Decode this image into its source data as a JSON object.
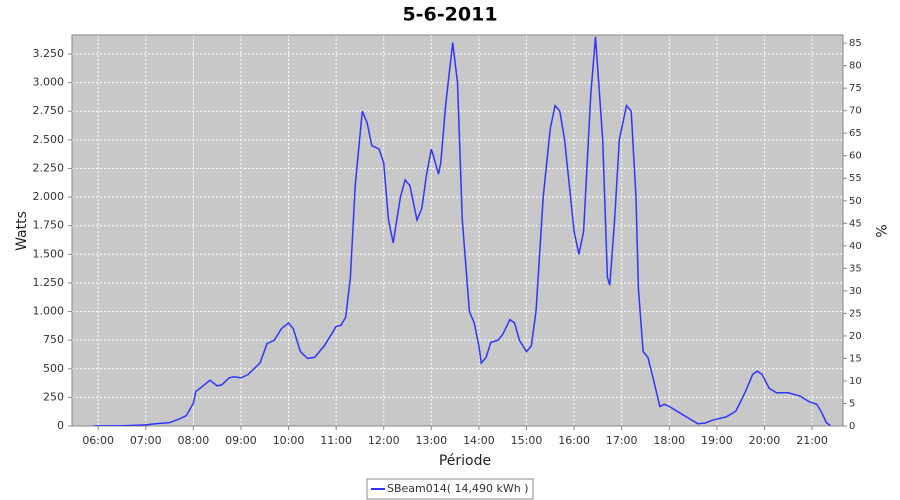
{
  "chart_data": {
    "type": "line",
    "title": "5-6-2011",
    "x_label": "Période",
    "y_label": "Watts",
    "y2_label": "%",
    "x": [
      5.9,
      6.5,
      7.0,
      7.2,
      7.5,
      7.7,
      7.85,
      8.0,
      8.05,
      8.2,
      8.35,
      8.5,
      8.6,
      8.75,
      8.85,
      9.0,
      9.15,
      9.4,
      9.55,
      9.7,
      9.85,
      10.0,
      10.1,
      10.25,
      10.4,
      10.55,
      10.75,
      10.9,
      11.0,
      11.1,
      11.2,
      11.3,
      11.4,
      11.55,
      11.65,
      11.75,
      11.9,
      12.0,
      12.1,
      12.2,
      12.35,
      12.45,
      12.55,
      12.7,
      12.8,
      12.9,
      13.0,
      13.05,
      13.15,
      13.2,
      13.3,
      13.45,
      13.55,
      13.65,
      13.8,
      13.9,
      14.0,
      14.05,
      14.15,
      14.25,
      14.4,
      14.5,
      14.65,
      14.75,
      14.85,
      15.0,
      15.1,
      15.2,
      15.35,
      15.5,
      15.6,
      15.7,
      15.8,
      16.0,
      16.1,
      16.2,
      16.35,
      16.45,
      16.6,
      16.7,
      16.75,
      16.85,
      16.95,
      17.1,
      17.2,
      17.3,
      17.35,
      17.45,
      17.55,
      17.7,
      17.8,
      17.9,
      18.0,
      18.2,
      18.4,
      18.6,
      18.75,
      18.9,
      19.2,
      19.4,
      19.6,
      19.75,
      19.85,
      19.95,
      20.1,
      20.25,
      20.5,
      20.75,
      20.95,
      21.1,
      21.2,
      21.3,
      21.38
    ],
    "series": [
      {
        "name": "SBeam014( 14,490 kWh )",
        "color": "#3333ff",
        "values": [
          0,
          2,
          10,
          20,
          30,
          60,
          90,
          200,
          300,
          350,
          400,
          350,
          360,
          420,
          430,
          420,
          450,
          550,
          720,
          750,
          850,
          900,
          850,
          650,
          590,
          600,
          700,
          800,
          870,
          880,
          950,
          1300,
          2100,
          2750,
          2650,
          2450,
          2420,
          2300,
          1800,
          1600,
          2000,
          2150,
          2100,
          1800,
          1900,
          2200,
          2420,
          2350,
          2200,
          2300,
          2800,
          3350,
          3000,
          1800,
          1000,
          900,
          700,
          550,
          600,
          730,
          750,
          800,
          930,
          900,
          750,
          650,
          700,
          1000,
          2000,
          2600,
          2800,
          2750,
          2500,
          1700,
          1500,
          1700,
          2900,
          3400,
          2500,
          1300,
          1230,
          1800,
          2500,
          2800,
          2750,
          2000,
          1200,
          650,
          600,
          350,
          170,
          190,
          170,
          120,
          70,
          20,
          25,
          50,
          80,
          130,
          300,
          450,
          480,
          450,
          330,
          290,
          290,
          260,
          210,
          190,
          120,
          30,
          5
        ]
      }
    ],
    "xlim": [
      5.45,
      21.65
    ],
    "xticks": [
      {
        "value": 6,
        "label": "06:00"
      },
      {
        "value": 7,
        "label": "07:00"
      },
      {
        "value": 8,
        "label": "08:00"
      },
      {
        "value": 9,
        "label": "09:00"
      },
      {
        "value": 10,
        "label": "10:00"
      },
      {
        "value": 11,
        "label": "11:00"
      },
      {
        "value": 12,
        "label": "12:00"
      },
      {
        "value": 13,
        "label": "13:00"
      },
      {
        "value": 14,
        "label": "14:00"
      },
      {
        "value": 15,
        "label": "15:00"
      },
      {
        "value": 16,
        "label": "16:00"
      },
      {
        "value": 17,
        "label": "17:00"
      },
      {
        "value": 18,
        "label": "18:00"
      },
      {
        "value": 19,
        "label": "19:00"
      },
      {
        "value": 20,
        "label": "20:00"
      },
      {
        "value": 21,
        "label": "21:00"
      }
    ],
    "ylim": [
      0,
      3416
    ],
    "yticks": [
      0,
      250,
      500,
      750,
      {
        "value": 1000,
        "label": "1.000"
      },
      {
        "value": 1250,
        "label": "1.250"
      },
      {
        "value": 1500,
        "label": "1.500"
      },
      {
        "value": 1750,
        "label": "1.750"
      },
      {
        "value": 2000,
        "label": "2.000"
      },
      {
        "value": 2250,
        "label": "2.250"
      },
      {
        "value": 2500,
        "label": "2.500"
      },
      {
        "value": 2750,
        "label": "2.750"
      },
      {
        "value": 3000,
        "label": "3.000"
      },
      {
        "value": 3250,
        "label": "3.250"
      }
    ],
    "y2lim": [
      0,
      86.8
    ],
    "y2ticks": [
      0,
      5,
      10,
      15,
      20,
      25,
      30,
      35,
      40,
      45,
      50,
      55,
      60,
      65,
      70,
      75,
      80,
      85
    ],
    "grid": true,
    "legend": "bottom"
  }
}
